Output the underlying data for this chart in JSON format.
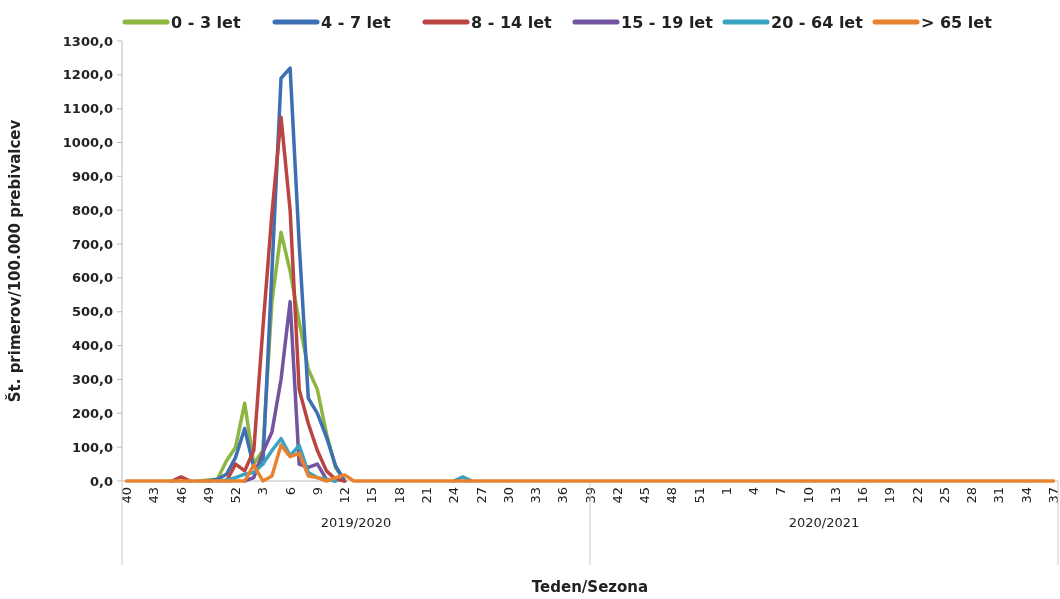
{
  "chart_data": {
    "type": "line",
    "xlabel": "Teden/Sezona",
    "ylabel": "Št. primerov/100.000 prebivalcev",
    "categories": [
      "40",
      null,
      null,
      "43",
      null,
      null,
      "46",
      null,
      null,
      "49",
      null,
      null,
      "52",
      null,
      null,
      "3",
      null,
      null,
      "6",
      null,
      null,
      "9",
      null,
      null,
      "12",
      null,
      null,
      "15",
      null,
      null,
      "18",
      null,
      null,
      "21",
      null,
      null,
      "24",
      null,
      null,
      "27",
      null,
      null,
      "30",
      null,
      null,
      "33",
      null,
      null,
      "36",
      null,
      null,
      "39",
      null,
      null,
      "42",
      null,
      null,
      "45",
      null,
      null,
      "48",
      null,
      null,
      "51",
      null,
      null,
      "1",
      null,
      null,
      "4",
      null,
      null,
      "7",
      null,
      null,
      "10",
      null,
      null,
      "13",
      null,
      null,
      "16",
      null,
      null,
      "19",
      null,
      null,
      "22",
      null,
      null,
      "25",
      null,
      null,
      "28",
      null,
      null,
      "31",
      null,
      null,
      "34",
      null,
      null,
      "37"
    ],
    "ylim": [
      0,
      1300
    ],
    "yticks": [
      {
        "value": 0,
        "label": "0,0"
      },
      {
        "value": 100,
        "label": "100,0"
      },
      {
        "value": 200,
        "label": "200,0"
      },
      {
        "value": 300,
        "label": "300,0"
      },
      {
        "value": 400,
        "label": "400,0"
      },
      {
        "value": 500,
        "label": "500,0"
      },
      {
        "value": 600,
        "label": "600,0"
      },
      {
        "value": 700,
        "label": "700,0"
      },
      {
        "value": 800,
        "label": "800,0"
      },
      {
        "value": 900,
        "label": "900,0"
      },
      {
        "value": 1000,
        "label": "1000,0"
      },
      {
        "value": 1100,
        "label": "1100,0"
      },
      {
        "value": 1200,
        "label": "1200,0"
      },
      {
        "value": 1300,
        "label": "1300,0"
      }
    ],
    "grid": false,
    "legend": "top",
    "marker": "none",
    "line_style": "solid",
    "annotations": [
      "2019/2020",
      "2020/2021"
    ],
    "series": [
      {
        "name": "0 - 3 let",
        "color": "#8db641",
        "values": [
          null,
          null,
          null,
          null,
          null,
          null,
          null,
          null,
          0,
          3,
          5,
          60,
          100,
          230,
          50,
          90,
          530,
          735,
          620,
          470,
          330,
          270,
          140,
          40,
          0,
          null,
          null,
          null,
          null,
          null,
          null,
          null,
          null,
          null,
          null,
          null,
          null,
          null,
          null,
          null,
          null,
          null,
          null,
          null,
          null,
          null,
          null,
          null,
          null,
          null,
          null,
          null,
          null,
          null,
          null,
          null,
          null,
          null,
          null,
          null,
          null,
          null,
          null,
          null,
          null,
          null,
          null,
          null,
          null,
          null,
          null,
          null,
          null,
          null,
          null,
          null,
          null,
          null,
          null,
          null,
          null,
          null,
          null,
          null,
          null,
          null,
          null,
          null,
          null,
          null,
          null,
          null,
          null,
          null,
          null,
          null,
          null,
          null,
          null,
          null,
          null,
          null,
          null
        ]
      },
      {
        "name": "4 - 7 let",
        "color": "#3d6fb5",
        "values": [
          null,
          null,
          null,
          null,
          null,
          null,
          null,
          null,
          null,
          0,
          5,
          20,
          70,
          155,
          40,
          50,
          620,
          1190,
          1220,
          700,
          245,
          200,
          130,
          45,
          0,
          null,
          null,
          null,
          null,
          null,
          null,
          null,
          null,
          null,
          null,
          null,
          null,
          null,
          null,
          null,
          null,
          null,
          null,
          null,
          null,
          null,
          null,
          null,
          null,
          null,
          null,
          null,
          null,
          null,
          null,
          null,
          null,
          null,
          null,
          null,
          null,
          null,
          null,
          null,
          null,
          null,
          null,
          null,
          null,
          null,
          null,
          null,
          null,
          null,
          null,
          null,
          null,
          null,
          null,
          null,
          null,
          null,
          null,
          null,
          null,
          null,
          null,
          null,
          null,
          null,
          null,
          null,
          null,
          null,
          null,
          null,
          null,
          null,
          null,
          null,
          null,
          null,
          null
        ]
      },
      {
        "name": "8 - 14 let",
        "color": "#b94441",
        "values": [
          null,
          null,
          null,
          null,
          null,
          0,
          12,
          0,
          null,
          null,
          null,
          0,
          50,
          30,
          90,
          450,
          790,
          1075,
          800,
          270,
          170,
          90,
          30,
          5,
          0,
          null,
          null,
          null,
          null,
          null,
          null,
          null,
          null,
          null,
          null,
          null,
          null,
          null,
          null,
          null,
          null,
          null,
          null,
          null,
          null,
          null,
          null,
          null,
          null,
          null,
          null,
          null,
          null,
          null,
          null,
          null,
          null,
          null,
          null,
          null,
          null,
          null,
          null,
          null,
          null,
          null,
          null,
          null,
          null,
          null,
          null,
          null,
          null,
          null,
          null,
          null,
          null,
          null,
          null,
          null,
          null,
          null,
          null,
          null,
          null,
          null,
          null,
          null,
          null,
          null,
          null,
          null,
          null,
          null,
          null,
          null,
          null,
          null,
          null,
          null,
          null,
          null,
          null
        ]
      },
      {
        "name": "15 - 19 let",
        "color": "#7254a0",
        "values": [
          null,
          null,
          null,
          null,
          null,
          null,
          null,
          null,
          null,
          null,
          null,
          null,
          null,
          0,
          10,
          85,
          145,
          300,
          530,
          50,
          40,
          50,
          5,
          0,
          null,
          null,
          null,
          null,
          null,
          null,
          null,
          null,
          null,
          null,
          null,
          null,
          null,
          null,
          null,
          null,
          null,
          null,
          null,
          null,
          null,
          null,
          null,
          null,
          null,
          null,
          null,
          null,
          null,
          null,
          null,
          null,
          null,
          null,
          null,
          null,
          null,
          null,
          null,
          null,
          null,
          null,
          null,
          null,
          null,
          null,
          null,
          null,
          null,
          null,
          null,
          null,
          null,
          null,
          null,
          null,
          null,
          null,
          null,
          null,
          null,
          null,
          null,
          null,
          null,
          null,
          null,
          null,
          null,
          null,
          null,
          null,
          null,
          null,
          null,
          null,
          null,
          null,
          null
        ]
      },
      {
        "name": "20 - 64 let",
        "color": "#3aa3c2",
        "values": [
          null,
          null,
          null,
          null,
          null,
          null,
          null,
          null,
          null,
          null,
          0,
          3,
          10,
          20,
          25,
          50,
          90,
          125,
          75,
          105,
          25,
          10,
          5,
          0,
          null,
          null,
          null,
          null,
          null,
          null,
          null,
          null,
          null,
          null,
          null,
          null,
          0,
          12,
          0,
          null,
          null,
          null,
          null,
          null,
          null,
          null,
          null,
          null,
          null,
          null,
          null,
          null,
          null,
          null,
          null,
          null,
          null,
          null,
          null,
          null,
          null,
          null,
          null,
          null,
          null,
          null,
          null,
          null,
          null,
          null,
          null,
          null,
          null,
          null,
          null,
          null,
          null,
          null,
          null,
          null,
          null,
          null,
          null,
          null,
          null,
          null,
          null,
          null,
          null,
          null,
          null,
          null,
          null,
          null,
          null,
          null,
          null,
          null,
          null,
          null,
          null,
          null,
          null
        ]
      },
      {
        "name": "> 65 let",
        "color": "#e8822f",
        "values": [
          0,
          0,
          0,
          0,
          0,
          0,
          0,
          0,
          0,
          0,
          0,
          0,
          0,
          0,
          47,
          0,
          15,
          106,
          72,
          82,
          15,
          10,
          0,
          10,
          18,
          0,
          0,
          0,
          0,
          0,
          0,
          0,
          0,
          0,
          0,
          0,
          0,
          0,
          0,
          0,
          0,
          0,
          0,
          0,
          0,
          0,
          0,
          0,
          0,
          0,
          0,
          0,
          0,
          0,
          0,
          0,
          0,
          0,
          0,
          0,
          0,
          0,
          0,
          0,
          0,
          0,
          0,
          0,
          0,
          0,
          0,
          0,
          0,
          0,
          0,
          0,
          0,
          0,
          0,
          0,
          0,
          0,
          0,
          0,
          0,
          0,
          0,
          0,
          0,
          0,
          0,
          0,
          0,
          0,
          0,
          0,
          0,
          0,
          0,
          0,
          0,
          0,
          0
        ]
      }
    ]
  }
}
